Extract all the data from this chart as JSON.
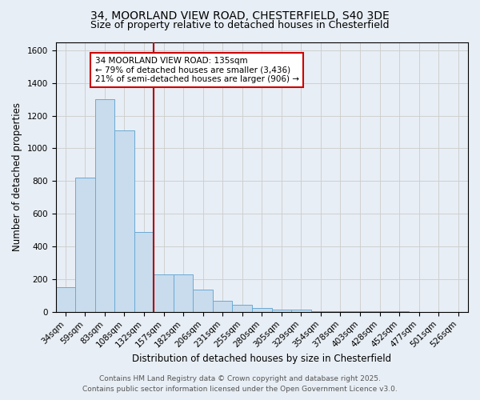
{
  "title_line1": "34, MOORLAND VIEW ROAD, CHESTERFIELD, S40 3DE",
  "title_line2": "Size of property relative to detached houses in Chesterfield",
  "xlabel": "Distribution of detached houses by size in Chesterfield",
  "ylabel": "Number of detached properties",
  "footer_line1": "Contains HM Land Registry data © Crown copyright and database right 2025.",
  "footer_line2": "Contains public sector information licensed under the Open Government Licence v3.0.",
  "bar_labels": [
    "34sqm",
    "59sqm",
    "83sqm",
    "108sqm",
    "132sqm",
    "157sqm",
    "182sqm",
    "206sqm",
    "231sqm",
    "255sqm",
    "280sqm",
    "305sqm",
    "329sqm",
    "354sqm",
    "378sqm",
    "403sqm",
    "428sqm",
    "452sqm",
    "477sqm",
    "501sqm",
    "526sqm"
  ],
  "bar_values": [
    150,
    820,
    1300,
    1110,
    490,
    230,
    230,
    135,
    70,
    42,
    25,
    12,
    15,
    5,
    5,
    5,
    2,
    5,
    0,
    0,
    0
  ],
  "bar_color": "#c8dced",
  "bar_edge_color": "#6aaad4",
  "annotation_box_text": "34 MOORLAND VIEW ROAD: 135sqm\n← 79% of detached houses are smaller (3,436)\n21% of semi-detached houses are larger (906) →",
  "annotation_box_color": "#ffffff",
  "annotation_box_edge_color": "#cc0000",
  "vline_x_index": 4,
  "vline_color": "#aa0000",
  "ylim": [
    0,
    1650
  ],
  "yticks": [
    0,
    200,
    400,
    600,
    800,
    1000,
    1200,
    1400,
    1600
  ],
  "grid_color": "#cccccc",
  "bg_color": "#e8eef5",
  "title_fontsize": 10,
  "subtitle_fontsize": 9,
  "axis_label_fontsize": 8.5,
  "tick_fontsize": 7.5,
  "annotation_fontsize": 7.5,
  "footer_fontsize": 6.5
}
